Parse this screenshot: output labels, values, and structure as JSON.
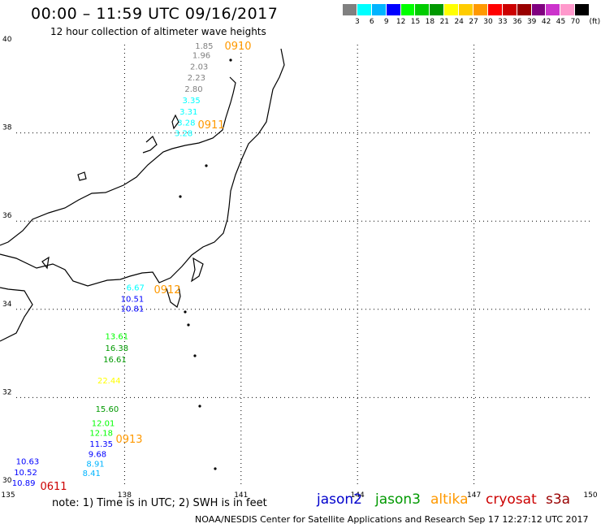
{
  "header": {
    "title": "00:00 – 11:59 UTC 09/16/2017",
    "subtitle": "12 hour collection of altimeter wave heights"
  },
  "scale": {
    "colors": [
      "#808080",
      "#00ffff",
      "#00b4ff",
      "#0000ff",
      "#00ff00",
      "#00cc00",
      "#009900",
      "#ffff00",
      "#ffcc00",
      "#ff9900",
      "#ff0000",
      "#cc0000",
      "#990000",
      "#800080",
      "#cc33cc",
      "#ff99cc",
      "#000000"
    ],
    "labels": [
      "3",
      "6",
      "9",
      "12",
      "15",
      "18",
      "21",
      "24",
      "27",
      "30",
      "33",
      "36",
      "39",
      "42",
      "45",
      "70",
      "(ft)"
    ]
  },
  "map": {
    "lon_range": [
      135,
      150
    ],
    "lat_range": [
      30,
      40
    ],
    "x_ticks": [
      "135",
      "138",
      "141",
      "144",
      "147",
      "150"
    ],
    "y_ticks": [
      "30",
      "32",
      "34",
      "36",
      "38",
      "40"
    ],
    "coastline_color": "#000000",
    "gridline_color": "#000000"
  },
  "tracks": [
    {
      "time": "0910",
      "time_color": "#ff9900",
      "points": [
        {
          "value": "1.85",
          "color": "#808080",
          "lon": 140.05,
          "lat": 39.91
        },
        {
          "value": "1.96",
          "color": "#808080",
          "lon": 139.98,
          "lat": 39.7
        },
        {
          "value": "2.03",
          "color": "#808080",
          "lon": 139.92,
          "lat": 39.44
        },
        {
          "value": "2.23",
          "color": "#808080",
          "lon": 139.85,
          "lat": 39.19
        },
        {
          "value": "2.80",
          "color": "#808080",
          "lon": 139.78,
          "lat": 38.93
        },
        {
          "value": "3.35",
          "color": "#00ffff",
          "lon": 139.72,
          "lat": 38.67
        },
        {
          "value": "3.31",
          "color": "#00ffff",
          "lon": 139.65,
          "lat": 38.42
        },
        {
          "value": "3.28",
          "color": "#00ffff",
          "lon": 139.59,
          "lat": 38.17
        },
        {
          "value": "3.28",
          "color": "#00ffff",
          "lon": 139.52,
          "lat": 37.93
        }
      ]
    },
    {
      "time": "0911",
      "time_color": "#ff9900",
      "points": []
    },
    {
      "time": "0912",
      "time_color": "#ff9900",
      "points": [
        {
          "value": "6.67",
          "color": "#00ffff",
          "lon": 138.28,
          "lat": 34.43
        },
        {
          "value": "10.51",
          "color": "#0000ff",
          "lon": 138.2,
          "lat": 34.17
        },
        {
          "value": "10.81",
          "color": "#0000ff",
          "lon": 138.2,
          "lat": 33.95
        }
      ]
    },
    {
      "time": "0913",
      "time_color": "#ff9900",
      "points": [
        {
          "value": "13.61",
          "color": "#00ff00",
          "lon": 137.8,
          "lat": 33.32
        },
        {
          "value": "16.38",
          "color": "#009900",
          "lon": 137.8,
          "lat": 33.06
        },
        {
          "value": "16.61",
          "color": "#009900",
          "lon": 137.75,
          "lat": 32.8
        },
        {
          "value": "22.44",
          "color": "#ffff00",
          "lon": 137.6,
          "lat": 32.32
        },
        {
          "value": "15.60",
          "color": "#009900",
          "lon": 137.55,
          "lat": 31.68
        },
        {
          "value": "12.01",
          "color": "#00ff00",
          "lon": 137.45,
          "lat": 31.35
        },
        {
          "value": "12.18",
          "color": "#00ff00",
          "lon": 137.4,
          "lat": 31.13
        },
        {
          "value": "11.35",
          "color": "#0000ff",
          "lon": 137.4,
          "lat": 30.88
        },
        {
          "value": "9.68",
          "color": "#0000ff",
          "lon": 137.3,
          "lat": 30.65
        },
        {
          "value": "8.91",
          "color": "#00b4ff",
          "lon": 137.25,
          "lat": 30.43
        },
        {
          "value": "8.41",
          "color": "#00b4ff",
          "lon": 137.15,
          "lat": 30.22
        }
      ]
    },
    {
      "time": "0611",
      "time_color": "#cc0000",
      "points": [
        {
          "value": "10.63",
          "color": "#0000ff",
          "lon": 135.5,
          "lat": 30.49
        },
        {
          "value": "10.52",
          "color": "#0000ff",
          "lon": 135.45,
          "lat": 30.24
        },
        {
          "value": "10.89",
          "color": "#0000ff",
          "lon": 135.4,
          "lat": 30.0
        }
      ]
    }
  ],
  "footer": {
    "note": "note: 1) Time is in UTC; 2) SWH is in feet",
    "credit": "NOAA/NESDIS Center for Satellite Applications and Research    Sep 17 12:27:12 UTC 2017",
    "legend": [
      {
        "label": "jason2",
        "color": "#0000cc"
      },
      {
        "label": "jason3",
        "color": "#009900"
      },
      {
        "label": "altika",
        "color": "#ff9900"
      },
      {
        "label": "cryosat",
        "color": "#cc0000"
      },
      {
        "label": "s3a",
        "color": "#990000"
      }
    ]
  }
}
